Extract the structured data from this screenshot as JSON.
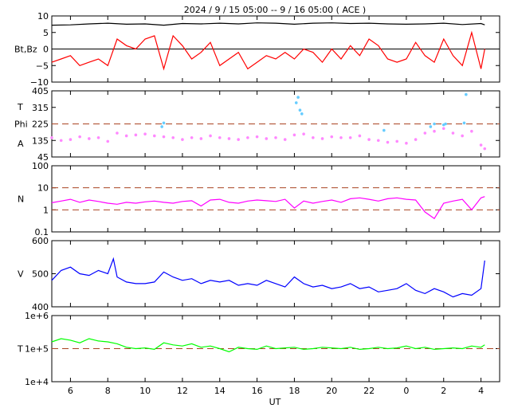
{
  "header": {
    "title": "2024 /  9 / 15   05:00 --  9 / 16   05:00 ( ACE )"
  },
  "x_axis": {
    "label": "UT",
    "ticks": [
      "6",
      "8",
      "10",
      "12",
      "14",
      "16",
      "18",
      "20",
      "22",
      "0",
      "2",
      "4"
    ],
    "tick_hours": [
      6,
      8,
      10,
      12,
      14,
      16,
      18,
      20,
      22,
      24,
      26,
      28
    ],
    "range_hours": [
      5,
      29
    ]
  },
  "chart_data": [
    {
      "type": "line",
      "panel": "magnetic-field",
      "ylabel": "Bt,Bz",
      "ylim": [
        -10,
        10
      ],
      "yticks": [
        "10",
        "5",
        "0",
        "−5",
        "−10"
      ],
      "ytick_values": [
        10,
        5,
        0,
        -5,
        -10
      ],
      "reference_lines": [
        0
      ],
      "colors": {
        "bt": "#000000",
        "bz": "#ff0000"
      },
      "series": [
        {
          "key": "bt",
          "x": [
            5,
            6,
            7,
            8,
            9,
            10,
            11,
            12,
            13,
            14,
            15,
            16,
            17,
            18,
            19,
            20,
            21,
            22,
            23,
            24,
            25,
            26,
            27,
            28,
            28.2
          ],
          "values": [
            7.2,
            7.3,
            7.6,
            7.8,
            7.5,
            7.6,
            7.2,
            7.7,
            7.6,
            7.8,
            7.6,
            7.9,
            7.8,
            7.5,
            7.8,
            7.9,
            7.7,
            7.8,
            7.6,
            7.5,
            7.6,
            7.8,
            7.4,
            7.7,
            7.3
          ]
        },
        {
          "key": "bz",
          "x": [
            5,
            5.5,
            6,
            6.5,
            7,
            7.5,
            8,
            8.5,
            9,
            9.5,
            10,
            10.5,
            11,
            11.5,
            12,
            12.5,
            13,
            13.5,
            14,
            14.5,
            15,
            15.5,
            16,
            16.5,
            17,
            17.5,
            18,
            18.5,
            19,
            19.5,
            20,
            20.5,
            21,
            21.5,
            22,
            22.5,
            23,
            23.5,
            24,
            24.5,
            25,
            25.5,
            26,
            26.5,
            27,
            27.5,
            28,
            28.2
          ],
          "values": [
            -4,
            -3,
            -2,
            -5,
            -4,
            -3,
            -5,
            3,
            1,
            0,
            3,
            4,
            -6,
            4,
            1,
            -3,
            -1,
            2,
            -5,
            -3,
            -1,
            -6,
            -4,
            -2,
            -3,
            -1,
            -3,
            0,
            -1,
            -4,
            0,
            -3,
            1,
            -2,
            3,
            1,
            -3,
            -4,
            -3,
            2,
            -2,
            -4,
            3,
            -2,
            -5,
            5,
            -6,
            0
          ]
        }
      ]
    },
    {
      "type": "scatter",
      "panel": "phi-angle",
      "ylabel": "Phi",
      "ylabel_top": "T",
      "ylabel_bottom": "A",
      "ylim": [
        45,
        405
      ],
      "yticks": [
        "405",
        "315",
        "225",
        "135",
        "45"
      ],
      "ytick_values": [
        405,
        315,
        225,
        135,
        45
      ],
      "reference_lines": [
        225
      ],
      "colors": {
        "main": "#ff88ff",
        "alt": "#66ccff",
        "ref": "#aa4422"
      },
      "series": [
        {
          "key": "main",
          "x": [
            5,
            5.5,
            6,
            6.5,
            7,
            7.5,
            8,
            8.5,
            9,
            9.5,
            10,
            10.5,
            11,
            11.5,
            12,
            12.5,
            13,
            13.5,
            14,
            14.5,
            15,
            15.5,
            16,
            16.5,
            17,
            17.5,
            18,
            18.5,
            19,
            19.5,
            20,
            20.5,
            21,
            21.5,
            22,
            22.5,
            23,
            23.5,
            24,
            24.5,
            25,
            25.5,
            26,
            26.5,
            27,
            27.5,
            28,
            28.2
          ],
          "values": [
            150,
            135,
            140,
            155,
            145,
            150,
            130,
            175,
            160,
            165,
            170,
            160,
            155,
            150,
            140,
            150,
            145,
            160,
            150,
            145,
            140,
            150,
            155,
            145,
            150,
            140,
            165,
            170,
            150,
            145,
            155,
            150,
            150,
            160,
            140,
            135,
            125,
            130,
            120,
            140,
            175,
            185,
            200,
            175,
            160,
            185,
            110,
            90
          ]
        },
        {
          "key": "alt",
          "x": [
            10.9,
            11,
            18.1,
            18.2,
            18.3,
            18.4,
            22.8,
            25.3,
            25.5,
            26,
            26.1,
            27.1,
            27.2
          ],
          "values": [
            210,
            230,
            340,
            370,
            300,
            280,
            190,
            210,
            225,
            220,
            225,
            230,
            385
          ]
        }
      ]
    },
    {
      "type": "line",
      "panel": "density",
      "ylabel": "N",
      "yscale": "log",
      "ylim": [
        0.1,
        100
      ],
      "yticks": [
        "100",
        "10",
        "1",
        "0.1"
      ],
      "ytick_values": [
        100,
        10,
        1,
        0.1
      ],
      "reference_lines": [
        10,
        1
      ],
      "colors": {
        "main": "#ff00ff",
        "ref": "#aa4422"
      },
      "series": [
        {
          "key": "n",
          "x": [
            5,
            5.5,
            6,
            6.5,
            7,
            7.5,
            8,
            8.5,
            9,
            9.5,
            10,
            10.5,
            11,
            11.5,
            12,
            12.5,
            13,
            13.5,
            14,
            14.5,
            15,
            15.5,
            16,
            16.5,
            17,
            17.5,
            18,
            18.5,
            19,
            19.5,
            20,
            20.5,
            21,
            21.5,
            22,
            22.5,
            23,
            23.5,
            24,
            24.5,
            25,
            25.5,
            26,
            26.5,
            27,
            27.5,
            28,
            28.2
          ],
          "values": [
            2.1,
            2.5,
            3.0,
            2.2,
            2.8,
            2.4,
            2.0,
            1.8,
            2.2,
            2.0,
            2.3,
            2.5,
            2.2,
            2.0,
            2.4,
            2.6,
            1.5,
            2.8,
            3.0,
            2.2,
            2.0,
            2.5,
            2.8,
            2.6,
            2.4,
            3.0,
            1.2,
            2.5,
            2.0,
            2.4,
            2.8,
            2.2,
            3.2,
            3.5,
            3.0,
            2.5,
            3.2,
            3.5,
            3.0,
            2.8,
            0.8,
            0.4,
            2.0,
            2.5,
            3.0,
            1.0,
            3.5,
            4.0
          ]
        }
      ]
    },
    {
      "type": "line",
      "panel": "speed",
      "ylabel": "V",
      "ylim": [
        400,
        600
      ],
      "yticks": [
        "600",
        "500",
        "400"
      ],
      "ytick_values": [
        600,
        500,
        400
      ],
      "colors": {
        "main": "#0000ff"
      },
      "series": [
        {
          "key": "v",
          "x": [
            5,
            5.5,
            6,
            6.5,
            7,
            7.5,
            8,
            8.3,
            8.5,
            9,
            9.5,
            10,
            10.5,
            11,
            11.5,
            12,
            12.5,
            13,
            13.5,
            14,
            14.5,
            15,
            15.5,
            16,
            16.5,
            17,
            17.5,
            18,
            18.5,
            19,
            19.5,
            20,
            20.5,
            21,
            21.5,
            22,
            22.5,
            23,
            23.5,
            24,
            24.5,
            25,
            25.5,
            26,
            26.5,
            27,
            27.5,
            28,
            28.2
          ],
          "values": [
            480,
            510,
            520,
            500,
            495,
            510,
            500,
            545,
            490,
            475,
            470,
            470,
            475,
            505,
            490,
            480,
            485,
            470,
            480,
            475,
            480,
            465,
            470,
            465,
            480,
            470,
            460,
            490,
            470,
            460,
            465,
            455,
            460,
            470,
            455,
            460,
            445,
            450,
            455,
            470,
            450,
            440,
            455,
            445,
            430,
            440,
            435,
            455,
            540
          ]
        }
      ]
    },
    {
      "type": "line",
      "panel": "temperature",
      "ylabel": "T",
      "yscale": "log",
      "ylim": [
        10000,
        1000000
      ],
      "yticks": [
        "1e+6",
        "1e+5",
        "1e+4"
      ],
      "ytick_values": [
        1000000,
        100000,
        10000
      ],
      "reference_lines": [
        100000
      ],
      "colors": {
        "main": "#00ff00",
        "ref": "#aa4422"
      },
      "series": [
        {
          "key": "t",
          "x": [
            5,
            5.5,
            6,
            6.5,
            7,
            7.5,
            8,
            8.5,
            9,
            9.5,
            10,
            10.5,
            11,
            11.5,
            12,
            12.5,
            13,
            13.5,
            14,
            14.5,
            15,
            15.5,
            16,
            16.5,
            17,
            17.5,
            18,
            18.5,
            19,
            19.5,
            20,
            20.5,
            21,
            21.5,
            22,
            22.5,
            23,
            23.5,
            24,
            24.5,
            25,
            25.5,
            26,
            26.5,
            27,
            27.5,
            28,
            28.2
          ],
          "values": [
            160000,
            200000,
            180000,
            150000,
            200000,
            170000,
            160000,
            140000,
            110000,
            100000,
            105000,
            95000,
            150000,
            130000,
            120000,
            140000,
            110000,
            120000,
            100000,
            80000,
            110000,
            100000,
            95000,
            120000,
            100000,
            105000,
            110000,
            95000,
            100000,
            110000,
            105000,
            100000,
            110000,
            95000,
            100000,
            110000,
            100000,
            105000,
            120000,
            100000,
            110000,
            95000,
            100000,
            105000,
            100000,
            120000,
            110000,
            130000
          ]
        }
      ]
    }
  ]
}
